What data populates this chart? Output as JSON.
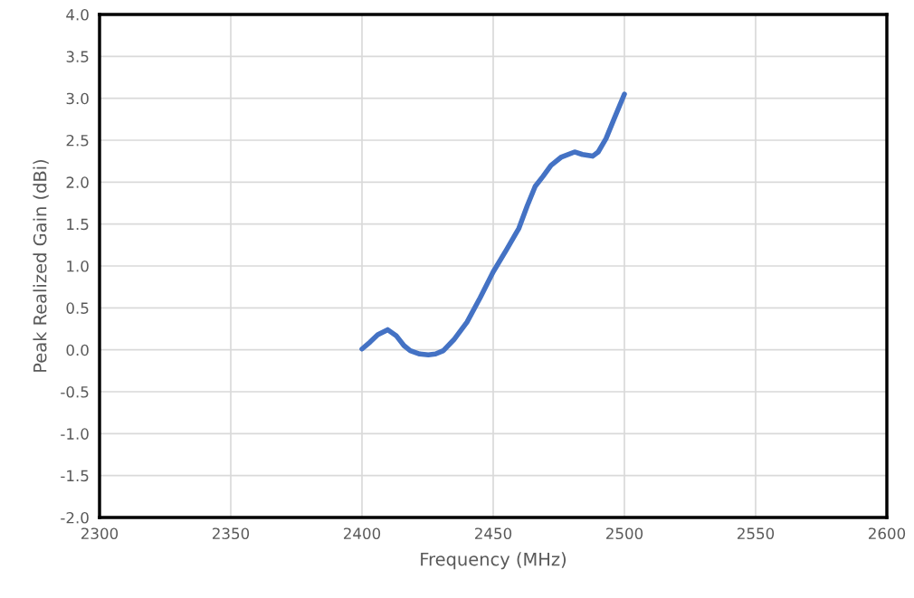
{
  "chart_data": {
    "type": "line",
    "xlabel": "Frequency (MHz)",
    "ylabel": "Peak Realized Gain (dBi)",
    "series": [
      {
        "color": "#4472c4",
        "x": [
          2400,
          2403,
          2406,
          2409.8,
          2413,
          2416,
          2418.4,
          2422,
          2425.3,
          2428,
          2431,
          2435,
          2440,
          2445,
          2450,
          2455,
          2459.8,
          2463,
          2466,
          2469,
          2472,
          2476,
          2481,
          2484,
          2487.9,
          2490,
          2493,
          2496,
          2500
        ],
        "values": [
          0.01,
          0.09,
          0.18,
          0.24,
          0.17,
          0.05,
          -0.01,
          -0.05,
          -0.06,
          -0.05,
          -0.01,
          0.12,
          0.33,
          0.62,
          0.93,
          1.19,
          1.45,
          1.72,
          1.95,
          2.07,
          2.2,
          2.3,
          2.36,
          2.33,
          2.31,
          2.36,
          2.52,
          2.75,
          3.05
        ]
      }
    ],
    "xlim": [
      2300,
      2600
    ],
    "xticks": [
      2300,
      2350,
      2400,
      2450,
      2500,
      2550,
      2600
    ],
    "ylim": [
      -2.0,
      4.0
    ],
    "yticks": [
      {
        "value": -2.0,
        "label": "-2.0"
      },
      {
        "value": -1.5,
        "label": "-1.5"
      },
      {
        "value": -1.0,
        "label": "-1.0"
      },
      {
        "value": -0.5,
        "label": "-0.5"
      },
      {
        "value": 0.0,
        "label": "0.0"
      },
      {
        "value": 0.5,
        "label": "0.5"
      },
      {
        "value": 1.0,
        "label": "1.0"
      },
      {
        "value": 1.5,
        "label": "1.5"
      },
      {
        "value": 2.0,
        "label": "2.0"
      },
      {
        "value": 2.5,
        "label": "2.5"
      },
      {
        "value": 3.0,
        "label": "3.0"
      },
      {
        "value": 3.5,
        "label": "3.5"
      },
      {
        "value": 4.0,
        "label": "4.0"
      }
    ],
    "grid": true
  }
}
